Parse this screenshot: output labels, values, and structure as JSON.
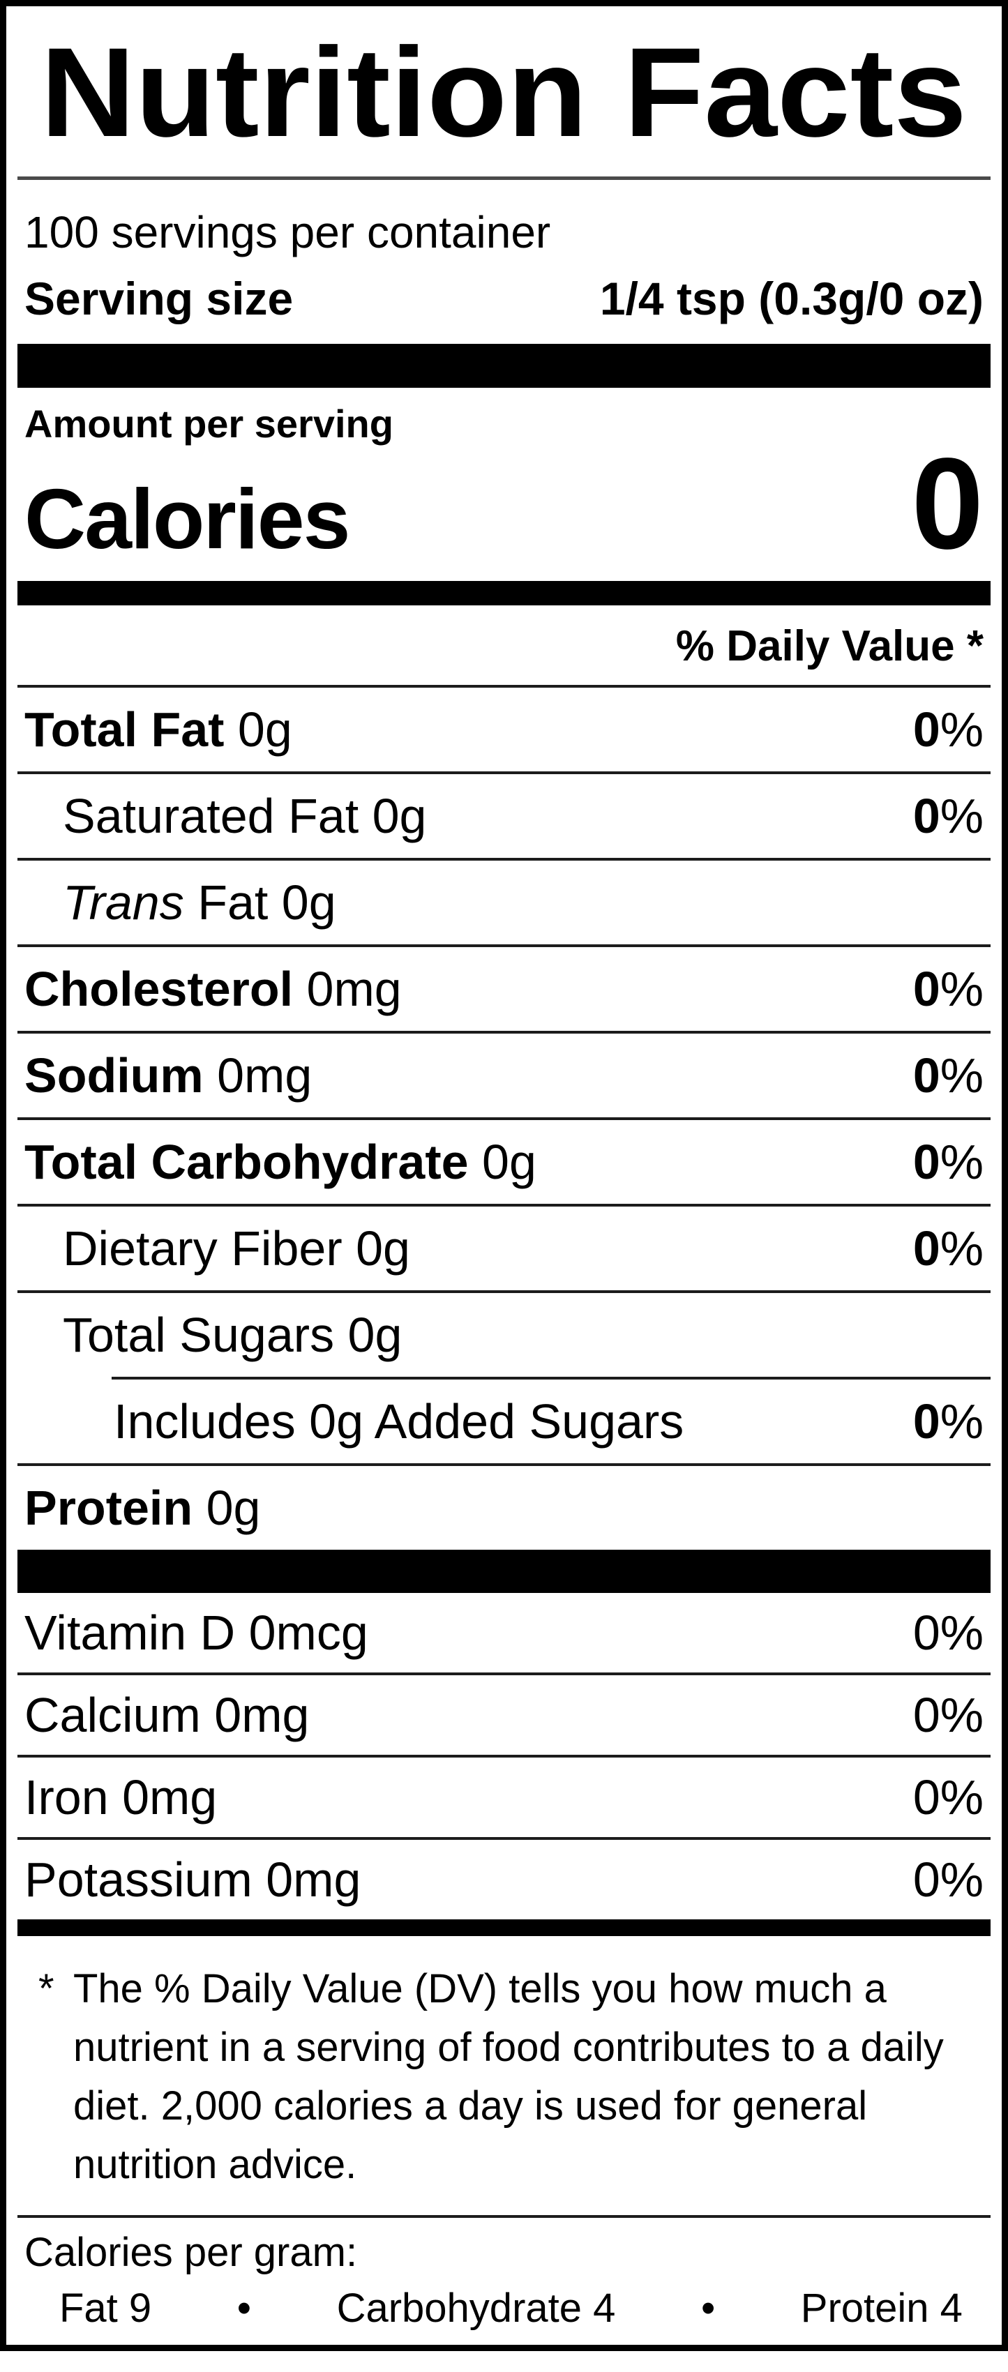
{
  "colors": {
    "ink": "#000000",
    "paper": "#ffffff"
  },
  "header": {
    "title": "Nutrition Facts"
  },
  "serving": {
    "servings_per_container": "100 servings per container",
    "serving_size_label": "Serving size",
    "serving_size_value": "1/4 tsp (0.3g/0 oz)"
  },
  "calories": {
    "amount_label": "Amount per serving",
    "label": "Calories",
    "value": "0"
  },
  "daily_value_header": "% Daily Value *",
  "nutrients": [
    {
      "bold": "Total Fat",
      "text": " 0g",
      "dv": "0",
      "pct": "%"
    },
    {
      "text": "Saturated Fat 0g",
      "dv": "0",
      "pct": "%"
    },
    {
      "italic": "Trans",
      "text": " Fat 0g",
      "dv": "",
      "pct": ""
    },
    {
      "bold": "Cholesterol",
      "text": " 0mg",
      "dv": "0",
      "pct": "%"
    },
    {
      "bold": "Sodium",
      "text": " 0mg",
      "dv": "0",
      "pct": "%"
    },
    {
      "bold": "Total Carbohydrate",
      "text": " 0g",
      "dv": "0",
      "pct": "%"
    },
    {
      "text": "Dietary Fiber 0g",
      "dv": "0",
      "pct": "%"
    },
    {
      "text": "Total Sugars 0g",
      "dv": "",
      "pct": ""
    },
    {
      "text": "Includes 0g Added Sugars",
      "dv": "0",
      "pct": "%"
    },
    {
      "bold": "Protein",
      "text": " 0g",
      "dv": "",
      "pct": ""
    }
  ],
  "vitamins": [
    {
      "text": "Vitamin D 0mcg",
      "dv": "0",
      "pct": "%"
    },
    {
      "text": "Calcium 0mg",
      "dv": "0",
      "pct": "%"
    },
    {
      "text": "Iron 0mg",
      "dv": "0",
      "pct": "%"
    },
    {
      "text": "Potassium 0mg",
      "dv": "0",
      "pct": "%"
    }
  ],
  "footnote": {
    "symbol": "*",
    "text": "The % Daily Value (DV) tells you how much a nutrient in a serving of food contributes to a daily diet. 2,000 calories a day is used for general nutrition advice."
  },
  "calories_per_gram": {
    "label": "Calories per gram:",
    "bullet": "•",
    "items": [
      "Fat 9",
      "Carbohydrate 4",
      "Protein 4"
    ]
  }
}
